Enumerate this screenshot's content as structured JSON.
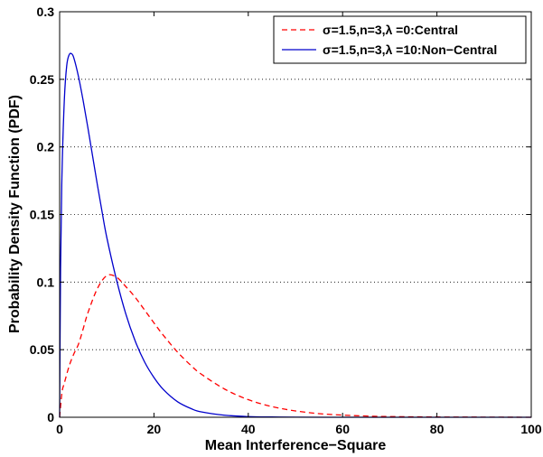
{
  "chart_data": {
    "type": "line",
    "xlabel": "Mean Interference−Square",
    "ylabel": "Probability Density Function (PDF)",
    "xlim": [
      0,
      100
    ],
    "ylim": [
      0,
      0.3
    ],
    "xticks": [
      0,
      20,
      40,
      60,
      80,
      100
    ],
    "xtick_labels": [
      "0",
      "20",
      "40",
      "60",
      "80",
      "100"
    ],
    "yticks": [
      0,
      0.05,
      0.1,
      0.15,
      0.2,
      0.25,
      0.3
    ],
    "ytick_labels": [
      "0",
      "0.05",
      "0.1",
      "0.15",
      "0.2",
      "0.25",
      "0.3"
    ],
    "grid": "y-dotted",
    "legend_position": "top-right",
    "series": [
      {
        "name": "σ=1.5,n=3,λ =0:Central",
        "color": "#ff0000",
        "style": "dashed",
        "x": [
          0,
          0.5,
          1,
          2,
          3,
          4,
          5,
          6,
          8,
          10,
          12,
          14,
          16,
          18,
          20,
          22,
          25,
          28,
          30,
          35,
          40,
          45,
          50,
          55,
          60,
          65,
          70,
          80,
          90,
          100
        ],
        "y": [
          0,
          0.0185,
          0.0253,
          0.0377,
          0.0468,
          0.0541,
          0.0655,
          0.0773,
          0.0952,
          0.1048,
          0.1038,
          0.0968,
          0.0888,
          0.0794,
          0.0698,
          0.0606,
          0.0482,
          0.0378,
          0.032,
          0.0208,
          0.013,
          0.0079,
          0.0047,
          0.0027,
          0.0016,
          0.0009,
          0.0005,
          0.0002,
          0.0001,
          0
        ]
      },
      {
        "name": "σ=1.5,n=3,λ =10:Non−Central",
        "color": "#0000cc",
        "style": "solid",
        "x": [
          0,
          0.2,
          0.5,
          1,
          1.5,
          2,
          2.5,
          3,
          4,
          5,
          6,
          7,
          8,
          9,
          10,
          12,
          14,
          16,
          18,
          20,
          22,
          25,
          28,
          30,
          35,
          40,
          45,
          50,
          60,
          70,
          80,
          90,
          100
        ],
        "y": [
          0,
          0.11,
          0.18,
          0.235,
          0.26,
          0.268,
          0.269,
          0.266,
          0.252,
          0.234,
          0.214,
          0.193,
          0.172,
          0.152,
          0.133,
          0.1025,
          0.0768,
          0.0566,
          0.041,
          0.0294,
          0.0205,
          0.0115,
          0.0062,
          0.004,
          0.0015,
          0.0005,
          0.0002,
          0.0001,
          0,
          0,
          0,
          0,
          0
        ]
      }
    ]
  }
}
